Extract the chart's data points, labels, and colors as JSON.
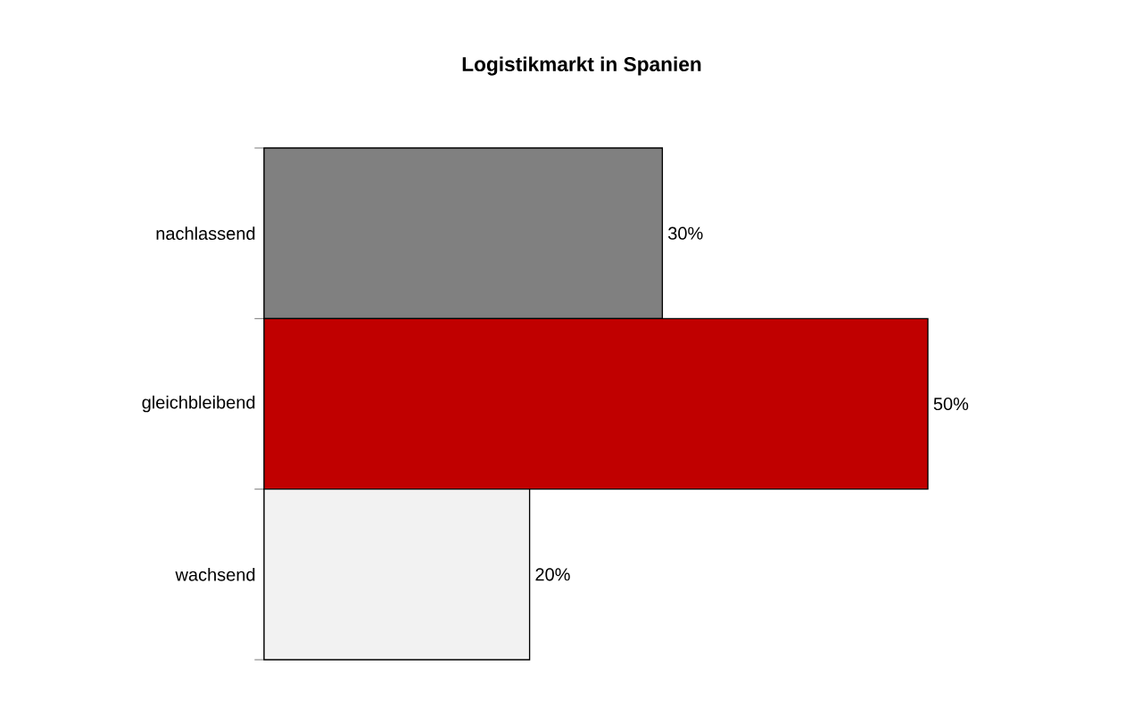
{
  "chart_data": {
    "type": "bar",
    "orientation": "horizontal",
    "title": "Logistikmarkt in Spanien",
    "categories": [
      "nachlassend",
      "gleichbleibend",
      "wachsend"
    ],
    "values": [
      30,
      50,
      20
    ],
    "colors": [
      "#808080",
      "#c00000",
      "#f2f2f2"
    ],
    "value_labels": [
      "30%",
      "50%",
      "20%"
    ],
    "tick_labels": "y"
  }
}
